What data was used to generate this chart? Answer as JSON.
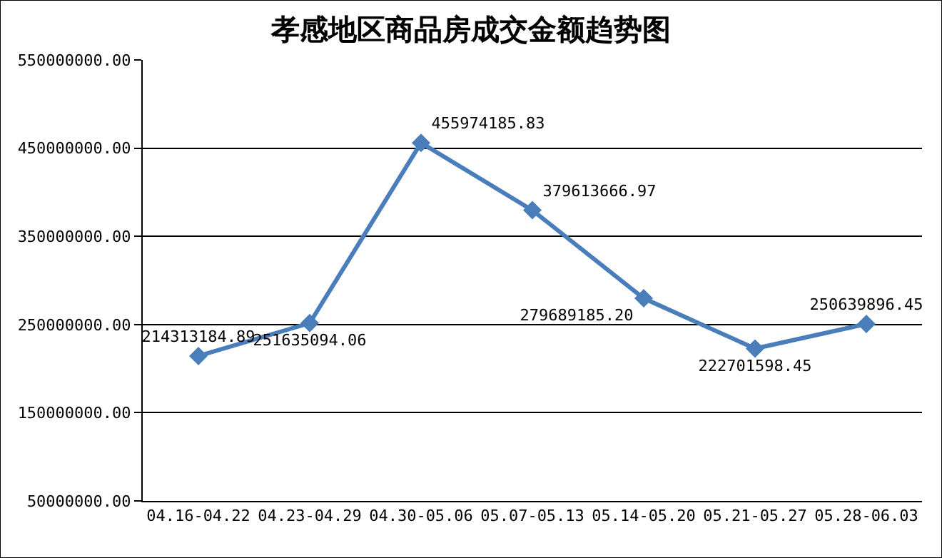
{
  "chart_data": {
    "type": "line",
    "title": "孝感地区商品房成交金额趋势图",
    "categories": [
      "04.16-04.22",
      "04.23-04.29",
      "04.30-05.06",
      "05.07-05.13",
      "05.14-05.20",
      "05.21-05.27",
      "05.28-06.03"
    ],
    "series": [
      {
        "color": "#4a7ebb",
        "values": [
          214313184.89,
          251635094.06,
          455974185.83,
          379613666.97,
          279689185.2,
          222701598.45,
          250639896.45
        ],
        "value_labels": [
          "214313184.89",
          "251635094.06",
          "455974185.83",
          "379613666.97",
          "279689185.20",
          "222701598.45",
          "250639896.45"
        ]
      }
    ],
    "ylim": [
      50000000,
      550000000
    ],
    "yticks": [
      {
        "value": 50000000,
        "label": "50000000.00"
      },
      {
        "value": 150000000,
        "label": "150000000.00"
      },
      {
        "value": 250000000,
        "label": "250000000.00"
      },
      {
        "value": 350000000,
        "label": "350000000.00"
      },
      {
        "value": 450000000,
        "label": "450000000.00"
      },
      {
        "value": 550000000,
        "label": "550000000.00"
      }
    ],
    "grid": "y",
    "marker": "diamond",
    "line_style": "solid",
    "legend": false
  }
}
